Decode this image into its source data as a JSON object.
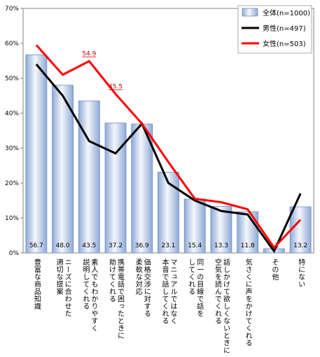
{
  "chart_data": {
    "type": "bar",
    "categories": [
      [
        "豊富な商品知識"
      ],
      [
        "ニーズに合わせた",
        "適切な提案"
      ],
      [
        "素人でもわかりやすく",
        "説明してくれる"
      ],
      [
        "携帯電話で困ったときに",
        "助けてくれる"
      ],
      [
        "価格交渉に対する",
        "柔軟な対応"
      ],
      [
        "マニュアルではなく",
        "本音で話してくれる"
      ],
      [
        "同一の目線で話を",
        "してくれる"
      ],
      [
        "話しかけて欲しくないときに",
        "空気を読んでくれる"
      ],
      [
        "気さくに声をかけてくれる"
      ],
      [
        "その他"
      ],
      [
        "特にない"
      ]
    ],
    "series": [
      {
        "name": "全体(n=1000)",
        "type": "bar",
        "color": "#b8cce4",
        "values": [
          56.7,
          48.0,
          43.5,
          37.2,
          36.9,
          23.1,
          15.4,
          13.3,
          11.8,
          1.2,
          13.2
        ],
        "labels": [
          "56.7",
          "48.0",
          "43.5",
          "37.2",
          "36.9",
          "23.1",
          "15.4",
          "13.3",
          "11.8",
          "1.2",
          "13.2"
        ]
      },
      {
        "name": "男性(n=497)",
        "type": "line",
        "color": "#000000",
        "values": [
          54.0,
          45.0,
          32.0,
          28.5,
          37.0,
          20.0,
          15.0,
          12.0,
          11.0,
          0.5,
          17.0
        ]
      },
      {
        "name": "女性(n=503)",
        "type": "line",
        "color": "#ff0000",
        "values": [
          59.5,
          51.0,
          54.9,
          45.5,
          37.0,
          26.0,
          15.5,
          14.5,
          12.5,
          1.5,
          9.5
        ]
      }
    ],
    "annotations": [
      {
        "series": 2,
        "index": 2,
        "text": "54.9"
      },
      {
        "series": 2,
        "index": 3,
        "text": "45.5"
      }
    ],
    "yticks": [
      "0%",
      "10%",
      "20%",
      "30%",
      "40%",
      "50%",
      "60%",
      "70%"
    ],
    "ylim": [
      0,
      70
    ],
    "grid": false,
    "legend": "top-right"
  }
}
